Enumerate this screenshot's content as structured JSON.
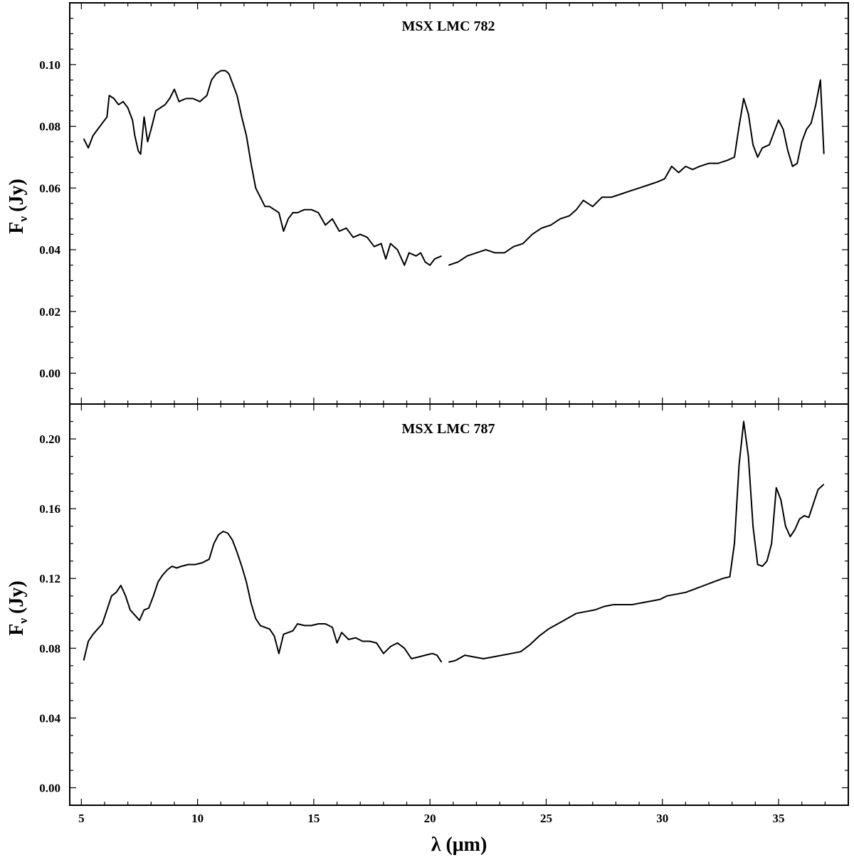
{
  "chart_data": [
    {
      "type": "line",
      "title": "MSX LMC 782",
      "xlabel": "",
      "ylabel": "Fν (Jy)",
      "ylabel_main": "F",
      "ylabel_sub": "ν",
      "ylabel_unit": "(Jy)",
      "xlim": [
        4.5,
        38.0
      ],
      "ylim": [
        -0.01,
        0.12
      ],
      "xticks": [
        5,
        10,
        15,
        20,
        25,
        30,
        35
      ],
      "xtick_labels": [],
      "yticks": [
        0.0,
        0.02,
        0.04,
        0.06,
        0.08,
        0.1
      ],
      "ytick_labels": [
        "0.00",
        "0.02",
        "0.04",
        "0.06",
        "0.08",
        "0.10"
      ],
      "grid": false,
      "series": [
        {
          "segments": [
            {
              "x": [
                5.1,
                5.3,
                5.5,
                5.7,
                5.9,
                6.1,
                6.2,
                6.4,
                6.6,
                6.8,
                7.0,
                7.2,
                7.3,
                7.45,
                7.55,
                7.7,
                7.85,
                8.0,
                8.2,
                8.4,
                8.6,
                8.8,
                9.0,
                9.2,
                9.5,
                9.8,
                10.1,
                10.4,
                10.6,
                10.8,
                11.0,
                11.2,
                11.35,
                11.5,
                11.7,
                11.9,
                12.1,
                12.3,
                12.5,
                12.7,
                12.9,
                13.1,
                13.3,
                13.5,
                13.7,
                13.9,
                14.1,
                14.3,
                14.6,
                14.9,
                15.2,
                15.5,
                15.8,
                16.1,
                16.4,
                16.7,
                17.0,
                17.3,
                17.6,
                17.9,
                18.1,
                18.3,
                18.6,
                18.9,
                19.1,
                19.4,
                19.6,
                19.8,
                20.0,
                20.2,
                20.5
              ],
              "y": [
                0.076,
                0.073,
                0.077,
                0.079,
                0.081,
                0.083,
                0.09,
                0.089,
                0.087,
                0.088,
                0.086,
                0.082,
                0.077,
                0.072,
                0.071,
                0.083,
                0.075,
                0.079,
                0.085,
                0.086,
                0.087,
                0.089,
                0.092,
                0.088,
                0.089,
                0.089,
                0.088,
                0.09,
                0.095,
                0.097,
                0.098,
                0.098,
                0.097,
                0.094,
                0.09,
                0.083,
                0.077,
                0.068,
                0.06,
                0.057,
                0.054,
                0.054,
                0.053,
                0.052,
                0.046,
                0.05,
                0.052,
                0.052,
                0.053,
                0.053,
                0.052,
                0.048,
                0.05,
                0.046,
                0.047,
                0.044,
                0.045,
                0.044,
                0.041,
                0.042,
                0.037,
                0.042,
                0.04,
                0.035,
                0.039,
                0.038,
                0.039,
                0.036,
                0.035,
                0.037,
                0.038
              ]
            },
            {
              "x": [
                20.8,
                21.2,
                21.6,
                22.0,
                22.4,
                22.8,
                23.2,
                23.6,
                24.0,
                24.4,
                24.8,
                25.2,
                25.6,
                26.0,
                26.3,
                26.6,
                27.0,
                27.4,
                27.8,
                28.2,
                28.6,
                29.0,
                29.4,
                29.8,
                30.1,
                30.4,
                30.7,
                31.0,
                31.3,
                31.6,
                32.0,
                32.4,
                32.8,
                33.1,
                33.3,
                33.5,
                33.7,
                33.9,
                34.1,
                34.3,
                34.6,
                34.8,
                35.0,
                35.2,
                35.4,
                35.6,
                35.8,
                36.0,
                36.2,
                36.4,
                36.6,
                36.8,
                36.95
              ],
              "y": [
                0.035,
                0.036,
                0.038,
                0.039,
                0.04,
                0.039,
                0.039,
                0.041,
                0.042,
                0.045,
                0.047,
                0.048,
                0.05,
                0.051,
                0.053,
                0.056,
                0.054,
                0.057,
                0.057,
                0.058,
                0.059,
                0.06,
                0.061,
                0.062,
                0.063,
                0.067,
                0.065,
                0.067,
                0.066,
                0.067,
                0.068,
                0.068,
                0.069,
                0.07,
                0.08,
                0.089,
                0.084,
                0.074,
                0.07,
                0.073,
                0.074,
                0.078,
                0.082,
                0.079,
                0.072,
                0.067,
                0.068,
                0.075,
                0.079,
                0.081,
                0.087,
                0.095,
                0.071
              ]
            }
          ]
        }
      ]
    },
    {
      "type": "line",
      "title": "MSX LMC 787",
      "xlabel": "λ (μm)",
      "ylabel": "Fν (Jy)",
      "ylabel_main": "F",
      "ylabel_sub": "ν",
      "ylabel_unit": "(Jy)",
      "xlim": [
        4.5,
        38.0
      ],
      "ylim": [
        -0.01,
        0.22
      ],
      "xticks": [
        5,
        10,
        15,
        20,
        25,
        30,
        35
      ],
      "xtick_labels": [
        "5",
        "10",
        "15",
        "20",
        "25",
        "30",
        "35"
      ],
      "yticks": [
        0.0,
        0.04,
        0.08,
        0.12,
        0.16,
        0.2
      ],
      "ytick_labels": [
        "0.00",
        "0.04",
        "0.08",
        "0.12",
        "0.16",
        "0.20"
      ],
      "grid": false,
      "series": [
        {
          "segments": [
            {
              "x": [
                5.1,
                5.3,
                5.5,
                5.7,
                5.9,
                6.1,
                6.3,
                6.5,
                6.7,
                6.9,
                7.1,
                7.3,
                7.5,
                7.7,
                7.9,
                8.1,
                8.3,
                8.5,
                8.7,
                8.9,
                9.1,
                9.3,
                9.6,
                9.9,
                10.2,
                10.5,
                10.7,
                10.9,
                11.1,
                11.3,
                11.5,
                11.7,
                11.9,
                12.1,
                12.3,
                12.5,
                12.7,
                12.9,
                13.1,
                13.3,
                13.5,
                13.7,
                13.9,
                14.1,
                14.3,
                14.6,
                14.9,
                15.2,
                15.5,
                15.8,
                16.0,
                16.2,
                16.5,
                16.8,
                17.1,
                17.4,
                17.7,
                18.0,
                18.3,
                18.6,
                18.9,
                19.2,
                19.5,
                19.8,
                20.1,
                20.3,
                20.5
              ],
              "y": [
                0.073,
                0.084,
                0.088,
                0.091,
                0.094,
                0.102,
                0.11,
                0.112,
                0.116,
                0.11,
                0.102,
                0.099,
                0.096,
                0.102,
                0.103,
                0.11,
                0.118,
                0.122,
                0.125,
                0.127,
                0.126,
                0.127,
                0.128,
                0.128,
                0.129,
                0.131,
                0.14,
                0.145,
                0.147,
                0.146,
                0.142,
                0.135,
                0.127,
                0.118,
                0.106,
                0.097,
                0.093,
                0.092,
                0.091,
                0.087,
                0.077,
                0.088,
                0.089,
                0.09,
                0.094,
                0.093,
                0.093,
                0.094,
                0.094,
                0.092,
                0.083,
                0.089,
                0.085,
                0.086,
                0.084,
                0.084,
                0.083,
                0.077,
                0.081,
                0.083,
                0.08,
                0.074,
                0.075,
                0.076,
                0.077,
                0.076,
                0.072
              ]
            },
            {
              "x": [
                20.8,
                21.1,
                21.5,
                21.9,
                22.3,
                22.7,
                23.1,
                23.5,
                23.9,
                24.3,
                24.7,
                25.1,
                25.5,
                25.9,
                26.3,
                26.7,
                27.1,
                27.5,
                27.9,
                28.3,
                28.7,
                29.1,
                29.5,
                29.9,
                30.2,
                30.6,
                31.0,
                31.4,
                31.8,
                32.2,
                32.6,
                32.9,
                33.1,
                33.3,
                33.5,
                33.7,
                33.9,
                34.1,
                34.3,
                34.5,
                34.7,
                34.9,
                35.1,
                35.3,
                35.5,
                35.7,
                35.9,
                36.1,
                36.3,
                36.5,
                36.7,
                36.95
              ],
              "y": [
                0.072,
                0.073,
                0.076,
                0.075,
                0.074,
                0.075,
                0.076,
                0.077,
                0.078,
                0.082,
                0.087,
                0.091,
                0.094,
                0.097,
                0.1,
                0.101,
                0.102,
                0.104,
                0.105,
                0.105,
                0.105,
                0.106,
                0.107,
                0.108,
                0.11,
                0.111,
                0.112,
                0.114,
                0.116,
                0.118,
                0.12,
                0.121,
                0.14,
                0.185,
                0.21,
                0.19,
                0.15,
                0.128,
                0.127,
                0.13,
                0.14,
                0.172,
                0.165,
                0.15,
                0.144,
                0.148,
                0.154,
                0.156,
                0.155,
                0.163,
                0.171,
                0.174
              ]
            }
          ]
        }
      ]
    }
  ]
}
